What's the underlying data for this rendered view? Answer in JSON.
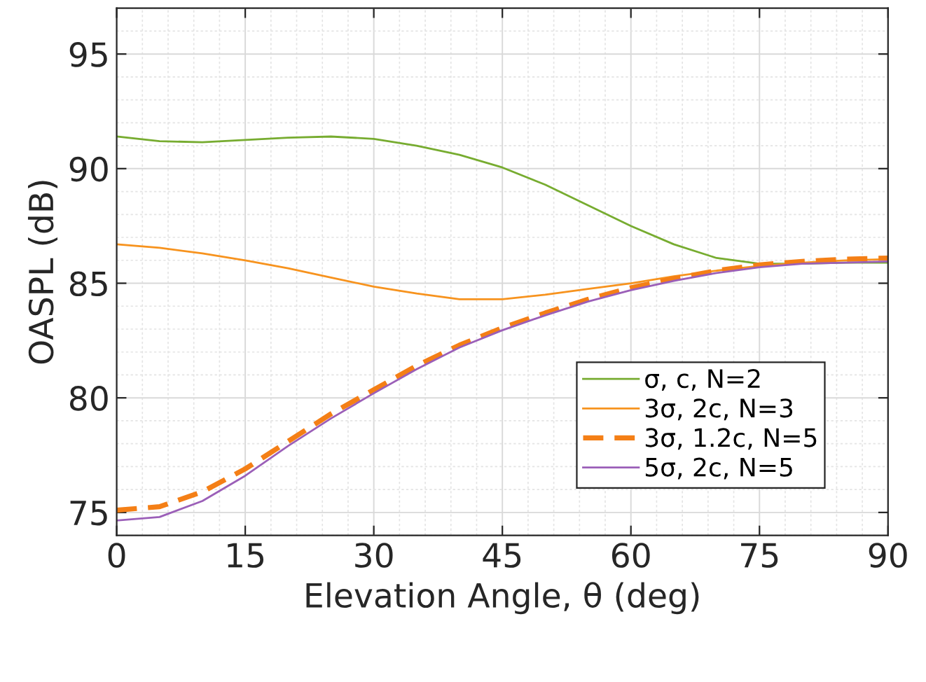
{
  "chart_data": {
    "type": "line",
    "xlabel": "Elevation Angle, θ (deg)",
    "ylabel": "OASPL (dB)",
    "x": [
      0,
      5,
      10,
      15,
      20,
      25,
      30,
      35,
      40,
      45,
      50,
      55,
      60,
      65,
      70,
      75,
      80,
      85,
      90
    ],
    "series": [
      {
        "name": "σ, c, N=2",
        "color": "#77ac30",
        "line_style": "solid",
        "values": [
          91.4,
          91.2,
          91.15,
          91.25,
          91.35,
          91.4,
          91.3,
          91.0,
          90.6,
          90.05,
          89.3,
          88.4,
          87.5,
          86.7,
          86.1,
          85.85,
          85.85,
          85.9,
          85.9
        ]
      },
      {
        "name": "3σ, 2c, N=3",
        "color": "#f7931e",
        "line_style": "solid",
        "values": [
          86.7,
          86.55,
          86.3,
          86.0,
          85.65,
          85.25,
          84.85,
          84.55,
          84.3,
          84.3,
          84.5,
          84.75,
          85.0,
          85.3,
          85.55,
          85.75,
          85.9,
          86.0,
          86.05
        ]
      },
      {
        "name": "3σ, 1.2c, N=5",
        "color": "#f47f16",
        "line_style": "dashed",
        "values": [
          75.1,
          75.25,
          75.9,
          76.9,
          78.1,
          79.3,
          80.35,
          81.4,
          82.3,
          83.05,
          83.7,
          84.3,
          84.8,
          85.2,
          85.55,
          85.8,
          85.95,
          86.05,
          86.1
        ]
      },
      {
        "name": "5σ, 2c, N=5",
        "color": "#9b5fb8",
        "line_style": "solid",
        "values": [
          74.65,
          74.8,
          75.5,
          76.6,
          77.9,
          79.1,
          80.2,
          81.25,
          82.2,
          82.95,
          83.6,
          84.2,
          84.7,
          85.1,
          85.45,
          85.7,
          85.85,
          85.9,
          85.95
        ]
      }
    ],
    "xlim": [
      0,
      90
    ],
    "xticks": [
      0,
      15,
      30,
      45,
      60,
      75,
      90
    ],
    "ylim": [
      74,
      97
    ],
    "yticks": [
      75,
      80,
      85,
      90,
      95
    ],
    "grid": true,
    "legend": "lower right",
    "marker": "none"
  }
}
